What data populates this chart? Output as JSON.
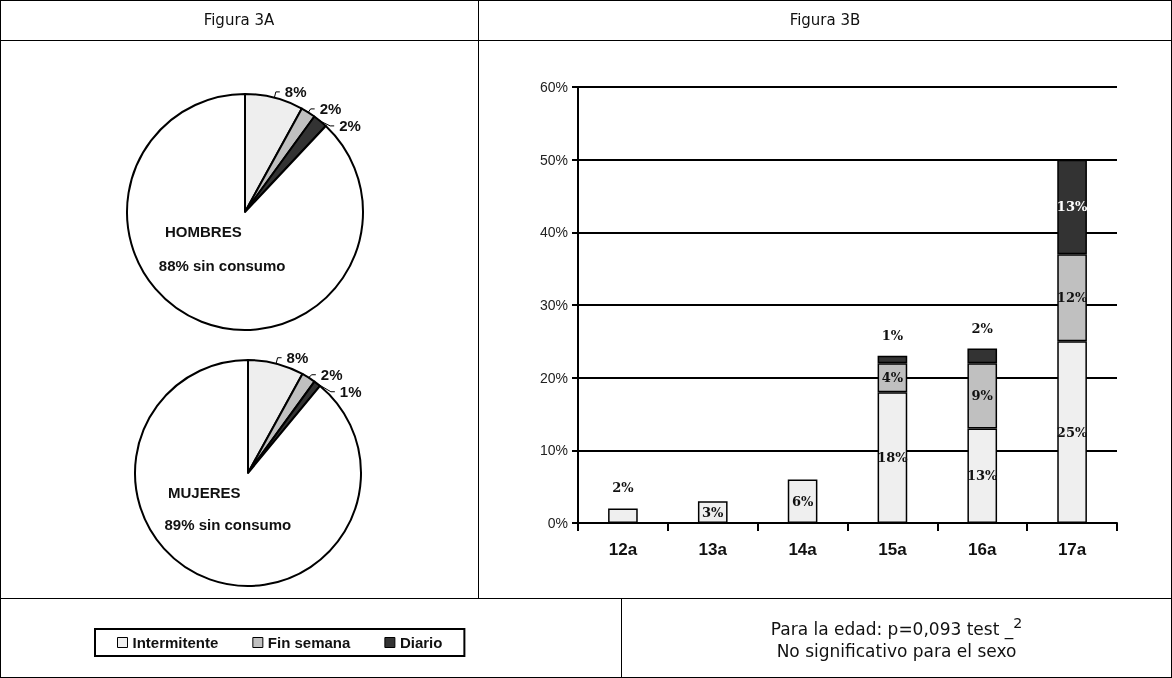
{
  "chart_data": [
    {
      "type": "pie",
      "title": "Figura 3A",
      "subtitle": "HOMBRES",
      "categories": [
        null,
        null,
        null,
        null
      ],
      "values": [
        8,
        2,
        2,
        88
      ],
      "colors": [
        "#eeeeee",
        "#c0c0c0",
        "#333333",
        "#ffffff"
      ],
      "value_labels": [
        "8%",
        "2%",
        "2%",
        "88% sin consumo"
      ]
    },
    {
      "type": "pie",
      "subtitle": "MUJERES",
      "categories": [
        null,
        null,
        null,
        null
      ],
      "values": [
        8,
        2,
        1,
        89
      ],
      "colors": [
        "#eeeeee",
        "#c0c0c0",
        "#333333",
        "#ffffff"
      ],
      "value_labels": [
        "8%",
        "2%",
        "1%",
        "89% sin consumo"
      ]
    },
    {
      "type": "bar",
      "title": "Figura 3B",
      "stacked": true,
      "categories": [
        "12a",
        "13a",
        "14a",
        "15a",
        "16a",
        "17a"
      ],
      "series": [
        {
          "name": "Intermitente",
          "color": "#efefef",
          "values": [
            2,
            3,
            6,
            18,
            13,
            25
          ],
          "value_labels": [
            "2%",
            "3%",
            "6%",
            "18%",
            "13%",
            "25%"
          ]
        },
        {
          "name": "Fin semana",
          "color": "#c0c0c0",
          "values": [
            null,
            null,
            null,
            4,
            9,
            12
          ],
          "value_labels": [
            null,
            null,
            null,
            "4%",
            "9%",
            "12%"
          ]
        },
        {
          "name": "Diario",
          "color": "#333333",
          "values": [
            null,
            null,
            null,
            1,
            2,
            13
          ],
          "value_labels": [
            null,
            null,
            null,
            "1%",
            "2%",
            "13%"
          ]
        }
      ],
      "ylim": [
        0,
        60
      ],
      "yticks": [
        {
          "value": 0,
          "label": "0%"
        },
        {
          "value": 10,
          "label": "10%"
        },
        {
          "value": 20,
          "label": "20%"
        },
        {
          "value": 30,
          "label": "30%"
        },
        {
          "value": 40,
          "label": "40%"
        },
        {
          "value": 50,
          "label": "50%"
        },
        {
          "value": 60,
          "label": "60%"
        }
      ],
      "grid": "y",
      "legend": "bottom",
      "annotations": [
        "Para la edad: p=0,093 test _$^{2}$",
        "No significativo para el sexo"
      ]
    }
  ]
}
